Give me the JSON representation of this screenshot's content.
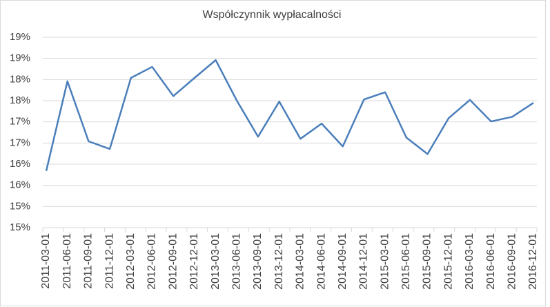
{
  "chart_data": {
    "type": "line",
    "title": "Współczynnik wypłacalności",
    "x": [
      "2011-03-01",
      "2011-06-01",
      "2011-09-01",
      "2011-12-01",
      "2012-03-01",
      "2012-06-01",
      "2012-09-01",
      "2012-12-01",
      "2013-03-01",
      "2013-06-01",
      "2013-09-01",
      "2013-12-01",
      "2014-03-01",
      "2014-06-01",
      "2014-09-01",
      "2014-12-01",
      "2015-03-01",
      "2015-06-01",
      "2015-09-01",
      "2015-12-01",
      "2016-03-01",
      "2016-06-01",
      "2016-09-01",
      "2016-12-01"
    ],
    "series": [
      {
        "color": "#4a7ebb",
        "values": [
          16.14,
          18.26,
          16.84,
          16.66,
          18.34,
          18.6,
          17.91,
          18.34,
          18.76,
          17.8,
          16.95,
          17.78,
          16.9,
          17.26,
          16.72,
          17.83,
          18.0,
          16.93,
          16.54,
          17.39,
          17.82,
          17.31,
          17.42,
          17.75
        ]
      }
    ],
    "ylim": [
      14.8,
      19.3
    ],
    "yticks": [
      {
        "value": 14.8,
        "label": "15%"
      },
      {
        "value": 15.3,
        "label": "15%"
      },
      {
        "value": 15.8,
        "label": "16%"
      },
      {
        "value": 16.3,
        "label": "16%"
      },
      {
        "value": 16.8,
        "label": "17%"
      },
      {
        "value": 17.3,
        "label": "17%"
      },
      {
        "value": 17.8,
        "label": "18%"
      },
      {
        "value": 18.3,
        "label": "18%"
      },
      {
        "value": 18.8,
        "label": "19%"
      },
      {
        "value": 19.3,
        "label": "19%"
      }
    ],
    "grid": true
  }
}
